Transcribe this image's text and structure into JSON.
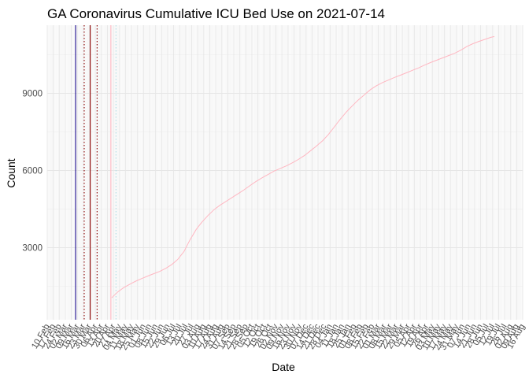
{
  "chart_data": {
    "type": "line",
    "title": "GA Coronavirus Cumulative ICU Bed Use on 2021-07-14",
    "xlabel": "Date",
    "ylabel": "Count",
    "x_range": [
      "2020-02-10",
      "2021-08-16"
    ],
    "ylim": [
      200,
      11650
    ],
    "y_ticks": [
      3000,
      6000,
      9000
    ],
    "y_tick_labels": [
      "3000",
      "6000",
      "9000"
    ],
    "x_tick_dates": [
      "2020-02-10",
      "2020-02-17",
      "2020-02-24",
      "2020-03-02",
      "2020-03-09",
      "2020-03-16",
      "2020-03-23",
      "2020-03-30",
      "2020-04-06",
      "2020-04-13",
      "2020-04-20",
      "2020-04-27",
      "2020-05-04",
      "2020-05-11",
      "2020-05-18",
      "2020-05-25",
      "2020-06-01",
      "2020-06-08",
      "2020-06-15",
      "2020-06-22",
      "2020-06-29",
      "2020-07-06",
      "2020-07-13",
      "2020-07-20",
      "2020-07-27",
      "2020-08-03",
      "2020-08-10",
      "2020-08-17",
      "2020-08-24",
      "2020-08-31",
      "2020-09-07",
      "2020-09-14",
      "2020-09-21",
      "2020-09-28",
      "2020-10-05",
      "2020-10-12",
      "2020-10-19",
      "2020-10-26",
      "2020-11-02",
      "2020-11-09",
      "2020-11-16",
      "2020-11-23",
      "2020-11-30",
      "2020-12-07",
      "2020-12-14",
      "2020-12-21",
      "2020-12-28",
      "2021-01-04",
      "2021-01-11",
      "2021-01-18",
      "2021-01-25",
      "2021-02-01",
      "2021-02-08",
      "2021-02-15",
      "2021-02-22",
      "2021-03-01",
      "2021-03-08",
      "2021-03-15",
      "2021-03-22",
      "2021-03-29",
      "2021-04-05",
      "2021-04-12",
      "2021-04-19",
      "2021-04-26",
      "2021-05-03",
      "2021-05-10",
      "2021-05-17",
      "2021-05-24",
      "2021-05-31",
      "2021-06-07",
      "2021-06-14",
      "2021-06-21",
      "2021-06-28",
      "2021-07-05",
      "2021-07-12",
      "2021-07-19",
      "2021-07-26",
      "2021-08-02",
      "2021-08-09",
      "2021-08-16"
    ],
    "x_tick_labels": [
      "10 Feb",
      "17 Feb",
      "24 Feb",
      "02 Mar",
      "09 Mar",
      "16 Mar",
      "23 Mar",
      "30 Mar",
      "06 Apr",
      "13 Apr",
      "20 Apr",
      "27 Apr",
      "04 May",
      "11 May",
      "18 May",
      "25 May",
      "01 Jun",
      "08 Jun",
      "15 Jun",
      "22 Jun",
      "29 Jun",
      "06 Jul",
      "13 Jul",
      "20 Jul",
      "27 Jul",
      "03 Aug",
      "10 Aug",
      "17 Aug",
      "24 Aug",
      "31 Aug",
      "07 Sep",
      "14 Sep",
      "21 Sep",
      "28 Sep",
      "05 Oct",
      "12 Oct",
      "19 Oct",
      "26 Oct",
      "02 Nov",
      "09 Nov",
      "16 Nov",
      "23 Nov",
      "30 Nov",
      "07 Dec",
      "14 Dec",
      "21 Dec",
      "28 Dec",
      "04 Jan",
      "11 Jan",
      "18 Jan",
      "25 Jan",
      "01 Feb",
      "08 Feb",
      "15 Feb",
      "22 Feb",
      "01 Mar",
      "08 Mar",
      "15 Mar",
      "22 Mar",
      "29 Mar",
      "05 Apr",
      "12 Apr",
      "19 Apr",
      "26 Apr",
      "03 May",
      "10 May",
      "17 May",
      "24 May",
      "31 May",
      "07 Jun",
      "14 Jun",
      "21 Jun",
      "28 Jun",
      "05 Jul",
      "12 Jul",
      "19 Jul",
      "26 Jul",
      "02 Aug",
      "09 Aug",
      "16 Aug"
    ],
    "grid": true,
    "legend": "none",
    "series": [
      {
        "color": "#FFB6C1",
        "points": [
          [
            "2020-04-25",
            1050
          ],
          [
            "2020-05-02",
            1280
          ],
          [
            "2020-05-09",
            1450
          ],
          [
            "2020-05-16",
            1580
          ],
          [
            "2020-05-23",
            1700
          ],
          [
            "2020-05-30",
            1800
          ],
          [
            "2020-06-06",
            1900
          ],
          [
            "2020-06-13",
            1990
          ],
          [
            "2020-06-20",
            2080
          ],
          [
            "2020-06-27",
            2200
          ],
          [
            "2020-07-04",
            2350
          ],
          [
            "2020-07-11",
            2550
          ],
          [
            "2020-07-18",
            2850
          ],
          [
            "2020-07-25",
            3300
          ],
          [
            "2020-08-01",
            3700
          ],
          [
            "2020-08-08",
            4000
          ],
          [
            "2020-08-15",
            4250
          ],
          [
            "2020-08-22",
            4480
          ],
          [
            "2020-08-29",
            4650
          ],
          [
            "2020-09-05",
            4800
          ],
          [
            "2020-09-12",
            4950
          ],
          [
            "2020-09-19",
            5100
          ],
          [
            "2020-09-26",
            5250
          ],
          [
            "2020-10-03",
            5420
          ],
          [
            "2020-10-10",
            5580
          ],
          [
            "2020-10-17",
            5720
          ],
          [
            "2020-10-24",
            5850
          ],
          [
            "2020-10-31",
            5980
          ],
          [
            "2020-11-07",
            6080
          ],
          [
            "2020-11-14",
            6180
          ],
          [
            "2020-11-21",
            6300
          ],
          [
            "2020-11-28",
            6430
          ],
          [
            "2020-12-05",
            6580
          ],
          [
            "2020-12-12",
            6760
          ],
          [
            "2020-12-19",
            6950
          ],
          [
            "2020-12-26",
            7150
          ],
          [
            "2021-01-02",
            7400
          ],
          [
            "2021-01-09",
            7700
          ],
          [
            "2021-01-16",
            8000
          ],
          [
            "2021-01-23",
            8280
          ],
          [
            "2021-01-30",
            8520
          ],
          [
            "2021-02-06",
            8750
          ],
          [
            "2021-02-13",
            8950
          ],
          [
            "2021-02-20",
            9150
          ],
          [
            "2021-02-27",
            9300
          ],
          [
            "2021-03-06",
            9420
          ],
          [
            "2021-03-13",
            9520
          ],
          [
            "2021-03-20",
            9620
          ],
          [
            "2021-03-27",
            9710
          ],
          [
            "2021-04-03",
            9800
          ],
          [
            "2021-04-10",
            9900
          ],
          [
            "2021-04-17",
            9990
          ],
          [
            "2021-04-24",
            10100
          ],
          [
            "2021-05-01",
            10200
          ],
          [
            "2021-05-08",
            10290
          ],
          [
            "2021-05-15",
            10380
          ],
          [
            "2021-05-22",
            10470
          ],
          [
            "2021-05-29",
            10560
          ],
          [
            "2021-06-05",
            10680
          ],
          [
            "2021-06-12",
            10820
          ],
          [
            "2021-06-19",
            10930
          ],
          [
            "2021-06-26",
            11020
          ],
          [
            "2021-07-03",
            11100
          ],
          [
            "2021-07-10",
            11180
          ],
          [
            "2021-07-14",
            11210
          ]
        ]
      }
    ],
    "vertical_lines": [
      {
        "date": "2020-03-14",
        "color": "#1a0a8c",
        "style": "solid"
      },
      {
        "date": "2020-03-24",
        "color": "#8b0000",
        "style": "dotted"
      },
      {
        "date": "2020-03-31",
        "color": "#8b0000",
        "style": "solid"
      },
      {
        "date": "2020-04-08",
        "color": "#8b0000",
        "style": "dotted"
      },
      {
        "date": "2020-04-24",
        "color": "#FFB6C1",
        "style": "solid"
      },
      {
        "date": "2020-04-30",
        "color": "#b0e0e6",
        "style": "dotted"
      }
    ]
  }
}
